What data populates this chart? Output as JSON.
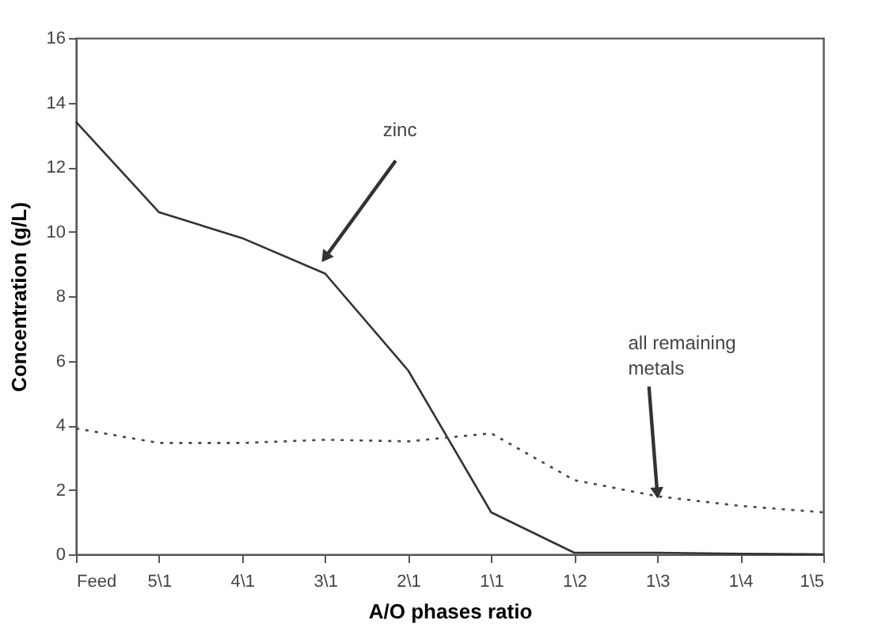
{
  "chart_data": {
    "type": "line",
    "xlabel": "A/O phases ratio",
    "ylabel": "Concentration (g/L)",
    "categories": [
      "Feed",
      "5\\1",
      "4\\1",
      "3\\1",
      "2\\1",
      "1\\1",
      "1\\2",
      "1\\3",
      "1\\4",
      "1\\5"
    ],
    "series": [
      {
        "color": "#333333",
        "line_style": "solid",
        "values": [
          13.4,
          10.6,
          9.8,
          8.7,
          5.7,
          1.3,
          0.05,
          0.05,
          0.02,
          0.0
        ]
      },
      {
        "color": "#444444",
        "line_style": "dotted",
        "values": [
          3.9,
          3.45,
          3.45,
          3.55,
          3.5,
          3.75,
          2.3,
          1.8,
          1.5,
          1.3
        ]
      }
    ],
    "annotations": [
      {
        "text": "zinc",
        "x": "3\\1",
        "y": 9.2
      },
      {
        "text": "all remaining\nmetals",
        "x": "1\\3",
        "y": 1.9
      }
    ],
    "ylim": [
      0,
      16
    ],
    "yticks": [
      0,
      2,
      4,
      6,
      8,
      10,
      12,
      14,
      16
    ],
    "grid": false,
    "marker": "none"
  }
}
